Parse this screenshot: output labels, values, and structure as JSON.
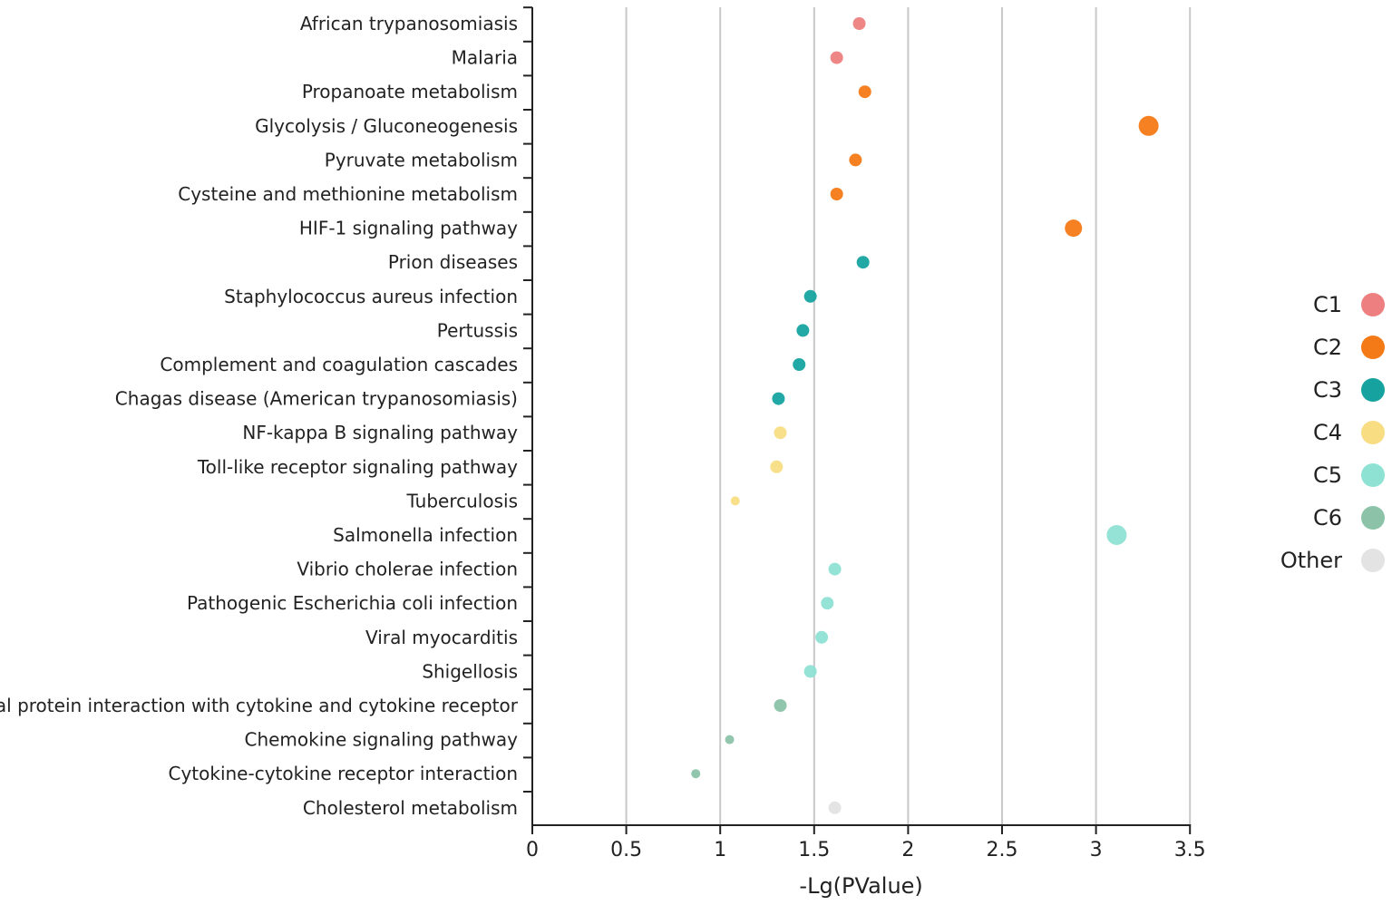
{
  "chart_data": {
    "type": "scatter",
    "title": "",
    "xlabel": "-Lg(PValue)",
    "ylabel": "",
    "xlim": [
      0,
      3.5
    ],
    "xticks": [
      0,
      0.5,
      1,
      1.5,
      2,
      2.5,
      3,
      3.5
    ],
    "xtick_labels": [
      "0",
      "0.5",
      "1",
      "1.5",
      "2",
      "2.5",
      "3",
      "3.5"
    ],
    "grid": "vertical",
    "legend_position": "right",
    "groups": [
      {
        "name": "C1",
        "color": "#EE7F80"
      },
      {
        "name": "C2",
        "color": "#F47A17"
      },
      {
        "name": "C3",
        "color": "#16A3A0"
      },
      {
        "name": "C4",
        "color": "#F8DD83"
      },
      {
        "name": "C5",
        "color": "#8EE2D4"
      },
      {
        "name": "C6",
        "color": "#8CC3A8"
      },
      {
        "name": "Other",
        "color": "#E3E3E3"
      }
    ],
    "points": [
      {
        "category": "African trypanosomiasis",
        "value": 1.74,
        "group": "C1",
        "size": 2
      },
      {
        "category": "Malaria",
        "value": 1.62,
        "group": "C1",
        "size": 2
      },
      {
        "category": "Propanoate metabolism",
        "value": 1.77,
        "group": "C2",
        "size": 2
      },
      {
        "category": "Glycolysis / Gluconeogenesis",
        "value": 3.28,
        "group": "C2",
        "size": 4
      },
      {
        "category": "Pyruvate metabolism",
        "value": 1.72,
        "group": "C2",
        "size": 2
      },
      {
        "category": "Cysteine and methionine metabolism",
        "value": 1.62,
        "group": "C2",
        "size": 2
      },
      {
        "category": "HIF-1 signaling pathway",
        "value": 2.88,
        "group": "C2",
        "size": 3
      },
      {
        "category": "Prion diseases",
        "value": 1.76,
        "group": "C3",
        "size": 2
      },
      {
        "category": "Staphylococcus aureus infection",
        "value": 1.48,
        "group": "C3",
        "size": 2
      },
      {
        "category": "Pertussis",
        "value": 1.44,
        "group": "C3",
        "size": 2
      },
      {
        "category": "Complement and coagulation cascades",
        "value": 1.42,
        "group": "C3",
        "size": 2
      },
      {
        "category": "Chagas disease (American trypanosomiasis)",
        "value": 1.31,
        "group": "C3",
        "size": 2
      },
      {
        "category": "NF-kappa B signaling pathway",
        "value": 1.32,
        "group": "C4",
        "size": 2
      },
      {
        "category": "Toll-like receptor signaling pathway",
        "value": 1.3,
        "group": "C4",
        "size": 2
      },
      {
        "category": "Tuberculosis",
        "value": 1.08,
        "group": "C4",
        "size": 1
      },
      {
        "category": "Salmonella infection",
        "value": 3.11,
        "group": "C5",
        "size": 4
      },
      {
        "category": "Vibrio cholerae infection",
        "value": 1.61,
        "group": "C5",
        "size": 2
      },
      {
        "category": "Pathogenic Escherichia coli infection",
        "value": 1.57,
        "group": "C5",
        "size": 2
      },
      {
        "category": "Viral myocarditis",
        "value": 1.54,
        "group": "C5",
        "size": 2
      },
      {
        "category": "Shigellosis",
        "value": 1.48,
        "group": "C5",
        "size": 2
      },
      {
        "category": "Viral protein interaction with cytokine and cytokine receptor",
        "value": 1.32,
        "group": "C6",
        "size": 2
      },
      {
        "category": "Chemokine signaling pathway",
        "value": 1.05,
        "group": "C6",
        "size": 1
      },
      {
        "category": "Cytokine-cytokine receptor interaction",
        "value": 0.87,
        "group": "C6",
        "size": 1
      },
      {
        "category": "Cholesterol metabolism",
        "value": 1.61,
        "group": "Other",
        "size": 2
      }
    ]
  }
}
